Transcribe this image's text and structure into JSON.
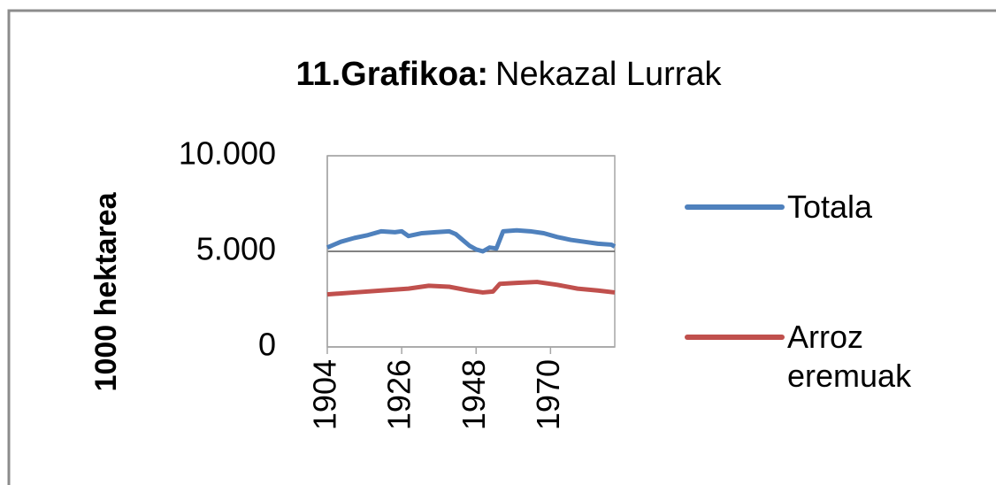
{
  "chart_data": {
    "type": "line",
    "title": [
      "11.Grafikoa:",
      "Nekazal Lurrak"
    ],
    "ylabel": "1000 hektarea",
    "xlim": [
      1904,
      1989
    ],
    "xticks": [
      1904,
      1926,
      1948,
      1970
    ],
    "ylim": [
      0,
      10000
    ],
    "yticks": [
      {
        "value": 0,
        "label": "0"
      },
      {
        "value": 5000,
        "label": "5.000"
      },
      {
        "value": 10000,
        "label": "10.000"
      }
    ],
    "grid": true,
    "legend": "right",
    "series": [
      {
        "name": "Totala",
        "color": "#4f81bd",
        "x": [
          1904,
          1908,
          1912,
          1916,
          1920,
          1924,
          1926,
          1928,
          1932,
          1936,
          1940,
          1942,
          1944,
          1946,
          1948,
          1950,
          1952,
          1954,
          1956,
          1960,
          1964,
          1968,
          1972,
          1976,
          1980,
          1984,
          1988,
          1989
        ],
        "values": [
          5200,
          5500,
          5700,
          5850,
          6050,
          6000,
          6050,
          5800,
          5950,
          6000,
          6050,
          5900,
          5600,
          5300,
          5100,
          5000,
          5200,
          5150,
          6050,
          6100,
          6050,
          5950,
          5750,
          5600,
          5500,
          5400,
          5350,
          5250
        ]
      },
      {
        "name": "Arroz eremuak",
        "color": "#c0504d",
        "x": [
          1904,
          1912,
          1920,
          1928,
          1934,
          1940,
          1946,
          1950,
          1953,
          1955,
          1960,
          1966,
          1972,
          1978,
          1984,
          1989
        ],
        "values": [
          2750,
          2850,
          2950,
          3050,
          3200,
          3150,
          2950,
          2850,
          2900,
          3300,
          3350,
          3400,
          3250,
          3050,
          2950,
          2850
        ]
      }
    ]
  }
}
